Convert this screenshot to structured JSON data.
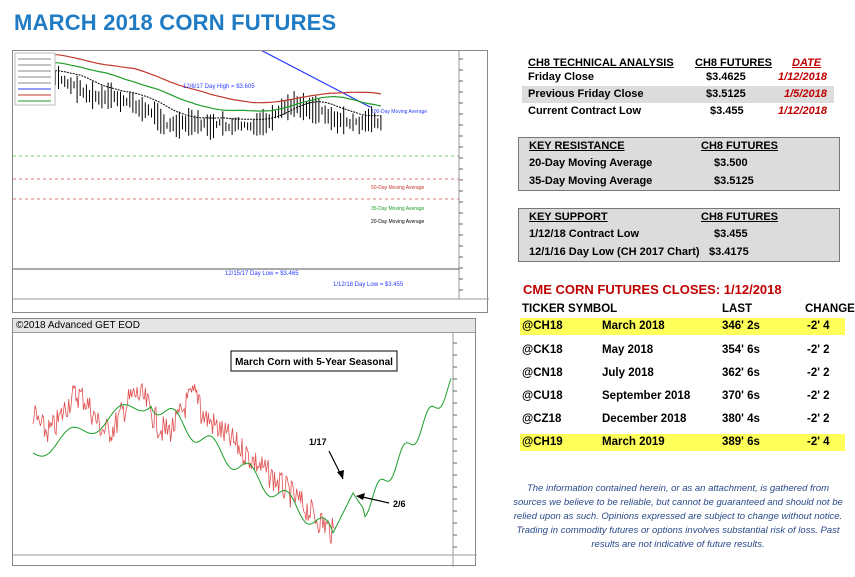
{
  "title": "MARCH 2018 CORN FUTURES",
  "chart1": {
    "annotations": {
      "day_high": "12/6/17 Day High = $3.605",
      "ma100": "100-Day Moving Average",
      "ma50": "50-Day Moving Average",
      "ma35": "35-Day Moving Average",
      "ma20": "20-Day Moving Average",
      "low_1215": "12/15/17 Day Low = $3.465",
      "low_0112": "1/12/18 Day Low = $3.455"
    },
    "colors": {
      "ma100": "#2a3cff",
      "ma50": "#c0392b",
      "ma35": "#1e9e2a",
      "ma20": "#000000"
    }
  },
  "chart2": {
    "header": "©2018 Advanced GET EOD",
    "label_box": "March Corn with 5-Year Seasonal",
    "arrow1": "1/17",
    "arrow2": "2/6",
    "colors": {
      "price": "#e05050",
      "seasonal": "#1e9e2a"
    }
  },
  "technical": {
    "headers": [
      "CH8 TECHNICAL ANALYSIS",
      "CH8 FUTURES",
      "DATE"
    ],
    "rows": [
      {
        "label": "Friday Close",
        "value": "$3.4625",
        "date": "1/12/2018"
      },
      {
        "label": "Previous Friday Close",
        "value": "$3.5125",
        "date": "1/5/2018"
      },
      {
        "label": "Current Contract Low",
        "value": "$3.455",
        "date": "1/12/2018"
      }
    ]
  },
  "resistance": {
    "headers": [
      "KEY RESISTANCE",
      "CH8 FUTURES"
    ],
    "rows": [
      {
        "label": "20-Day Moving Average",
        "value": "$3.500"
      },
      {
        "label": "35-Day Moving Average",
        "value": "$3.5125"
      }
    ]
  },
  "support": {
    "headers": [
      "KEY SUPPORT",
      "CH8 FUTURES"
    ],
    "rows": [
      {
        "label": "1/12/18 Contract Low",
        "value": "$3.455"
      },
      {
        "label": "12/1/16 Day Low (CH 2017 Chart)",
        "value": "$3.4175"
      }
    ]
  },
  "cme": {
    "title": "CME CORN FUTURES CLOSES:  1/12/2018",
    "headers": [
      "TICKER SYMBOL",
      "LAST",
      "CHANGE"
    ],
    "rows": [
      {
        "ticker": "@CH18",
        "month": "March 2018",
        "last": "346' 2s",
        "change": "-2' 4",
        "highlight": true
      },
      {
        "ticker": "@CK18",
        "month": "May 2018",
        "last": "354' 6s",
        "change": "-2' 2",
        "highlight": false
      },
      {
        "ticker": "@CN18",
        "month": "July 2018",
        "last": "362' 6s",
        "change": "-2' 2",
        "highlight": false
      },
      {
        "ticker": "@CU18",
        "month": "September 2018",
        "last": "370' 6s",
        "change": "-2' 2",
        "highlight": false
      },
      {
        "ticker": "@CZ18",
        "month": "December 2018",
        "last": "380' 4s",
        "change": "-2' 2",
        "highlight": false
      },
      {
        "ticker": "@CH19",
        "month": "March 2019",
        "last": "389' 6s",
        "change": "-2' 4",
        "highlight": true
      }
    ]
  },
  "disclaimer": "The information contained herein, or as an attachment, is gathered from sources we believe to be reliable, but cannot be guaranteed and should not be relied upon as such. Opinions expressed are subject to change without notice. Trading in commodity futures or options involves substantial risk of loss. Past results are not indicative of future results."
}
